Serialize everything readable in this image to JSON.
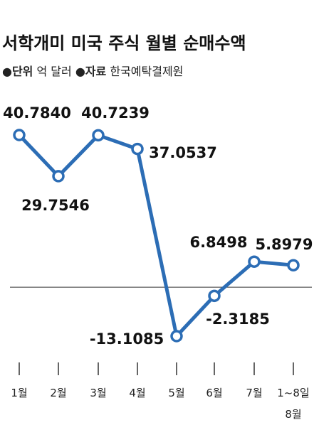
{
  "chart_data": {
    "type": "line",
    "title": "서학개미 미국 주식 월별 순매수액",
    "unit_label": "●단위",
    "unit": "억 달러",
    "source_label": "●자료",
    "source": "한국예탁결제원",
    "categories": [
      "1월",
      "2월",
      "3월",
      "4월",
      "5월",
      "6월",
      "7월",
      "1~8일\n8월"
    ],
    "series": [
      {
        "name": "순매수액",
        "color": "#2c6db5",
        "values": [
          40.784,
          29.7546,
          40.7239,
          37.0537,
          -13.1085,
          -2.3185,
          6.8498,
          5.8979
        ],
        "value_labels": [
          "40.7840",
          "29.7546",
          "40.7239",
          "37.0537",
          "-13.1085",
          "-2.3185",
          "6.8498",
          "5.8979"
        ]
      }
    ]
  }
}
